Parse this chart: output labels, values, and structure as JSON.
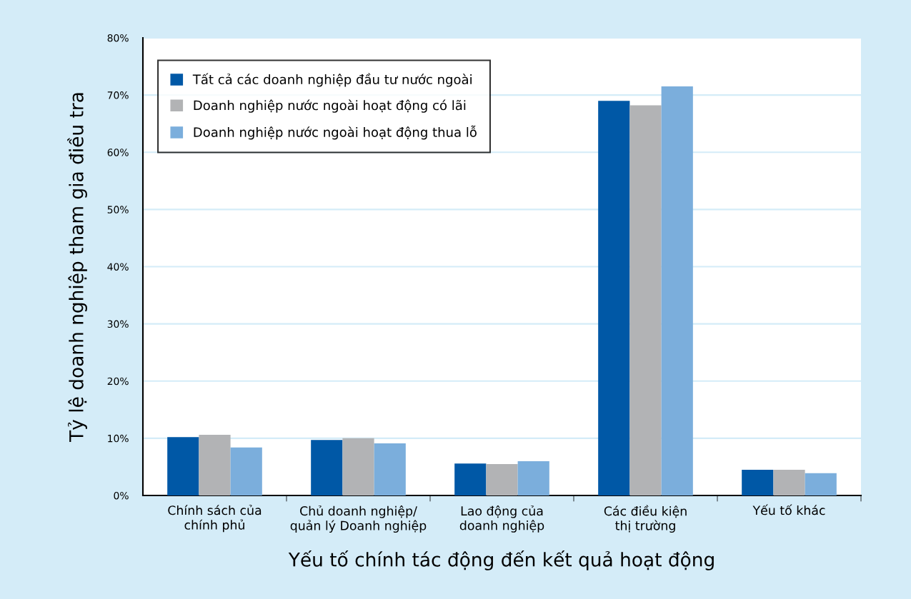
{
  "chart_data": {
    "type": "bar",
    "xlabel": "Yếu tố chính tác động đến kết quả hoạt động",
    "ylabel": "Tỷ lệ doanh nghiệp tham gia điều tra",
    "categories": [
      "Chính sách của\nchính phủ",
      "Chủ doanh nghiệp/\nquản lý Doanh nghiệp",
      "Lao động của\ndoanh nghiệp",
      "Các điều kiện\nthị trường",
      "Yếu tố khác"
    ],
    "series": [
      {
        "name": "Tất cả các doanh nghiệp đầu tư nước ngoài",
        "color": "#0058a6",
        "values": [
          10.2,
          9.7,
          5.6,
          69.0,
          4.5
        ]
      },
      {
        "name": "Doanh nghiệp nước ngoài hoạt động có lãi",
        "color": "#b2b3b5",
        "values": [
          10.6,
          10.0,
          5.5,
          68.2,
          4.5
        ]
      },
      {
        "name": "Doanh nghiệp nước ngoài hoạt động thua lỗ",
        "color": "#7baedc",
        "values": [
          8.4,
          9.1,
          6.0,
          71.5,
          3.9
        ]
      }
    ],
    "ylim": [
      0,
      80
    ],
    "yticks": [
      {
        "value": 0,
        "label": "0%"
      },
      {
        "value": 10,
        "label": "10%"
      },
      {
        "value": 20,
        "label": "20%"
      },
      {
        "value": 30,
        "label": "30%"
      },
      {
        "value": 40,
        "label": "40%"
      },
      {
        "value": 50,
        "label": "50%"
      },
      {
        "value": 60,
        "label": "60%"
      },
      {
        "value": 70,
        "label": "70%"
      },
      {
        "value": 80,
        "label": "80%"
      }
    ],
    "grid": "y",
    "legend": "top left"
  }
}
